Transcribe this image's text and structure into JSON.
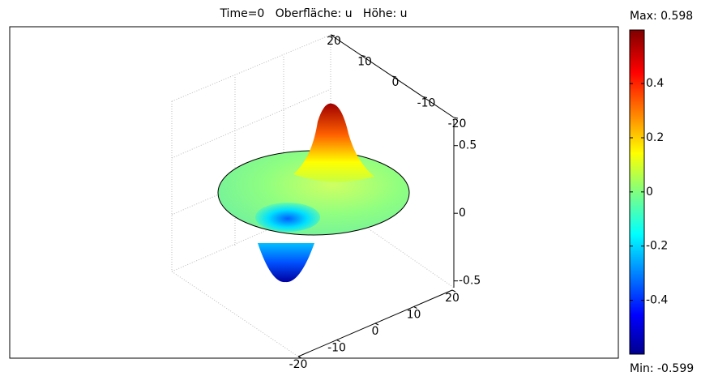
{
  "chart_data": {
    "type": "surface",
    "title": "Time=0   Oberfläche: u   Höhe: u",
    "xlim": [
      -20,
      20
    ],
    "xticks": [
      -20,
      -10,
      0,
      10,
      20
    ],
    "ylim": [
      -20,
      20
    ],
    "yticks": [
      -20,
      -10,
      0,
      10,
      20
    ],
    "zlim": [
      -0.55,
      0.69
    ],
    "zticks": [
      -0.5,
      0,
      0.5
    ],
    "colorbar": {
      "max_label": "Max: 0.598",
      "min_label": "Min: -0.599",
      "clim": [
        -0.599,
        0.598
      ],
      "ticks": [
        -0.4,
        -0.2,
        0,
        0.2,
        0.4
      ]
    }
  }
}
